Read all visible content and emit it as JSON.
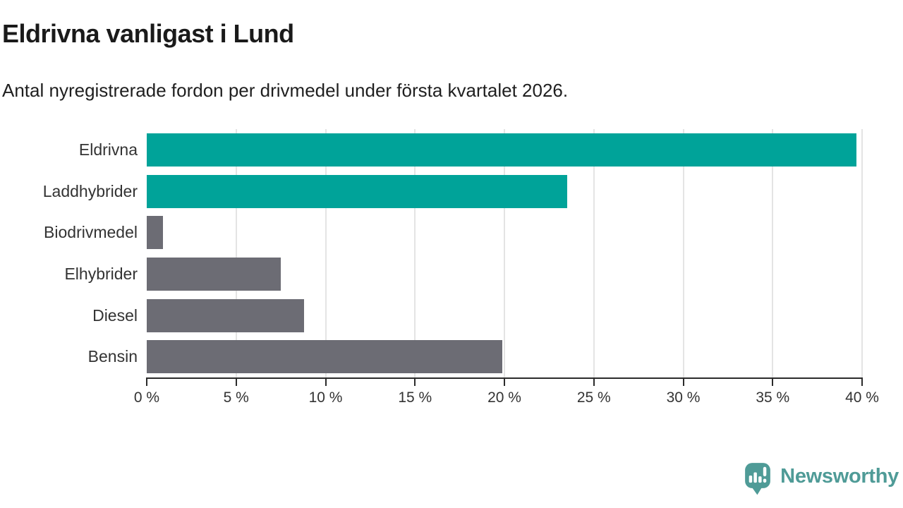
{
  "header": {
    "title": "Eldrivna vanligast i Lund",
    "subtitle": "Antal nyregistrerade fordon per drivmedel under första kvartalet 2026."
  },
  "chart_data": {
    "type": "bar",
    "orientation": "horizontal",
    "title": "Eldrivna vanligast i Lund",
    "subtitle": "Antal nyregistrerade fordon per drivmedel under första kvartalet 2026.",
    "categories": [
      "Eldrivna",
      "Laddhybrider",
      "Biodrivmedel",
      "Elhybrider",
      "Diesel",
      "Bensin"
    ],
    "values": [
      39.7,
      23.5,
      0.9,
      7.5,
      8.8,
      19.9
    ],
    "unit": "%",
    "xlim": [
      0,
      40
    ],
    "x_tick_step": 5,
    "x_tick_labels": [
      "0 %",
      "5 %",
      "10 %",
      "15 %",
      "20 %",
      "25 %",
      "30 %",
      "35 %",
      "40 %"
    ],
    "grid": true,
    "legend": "none",
    "xlabel": "",
    "ylabel": "",
    "colors": {
      "highlight": "#00a399",
      "default": "#6c6c74",
      "highlighted_categories": [
        "Eldrivna",
        "Laddhybrider"
      ],
      "gridline": "#e4e4e4",
      "axis": "#2b2b2b"
    }
  },
  "footer": {
    "brand": "Newsworthy",
    "brand_color": "#4f9b97",
    "logo_icon": "speech-bubble-bar-chart-exclamation"
  }
}
